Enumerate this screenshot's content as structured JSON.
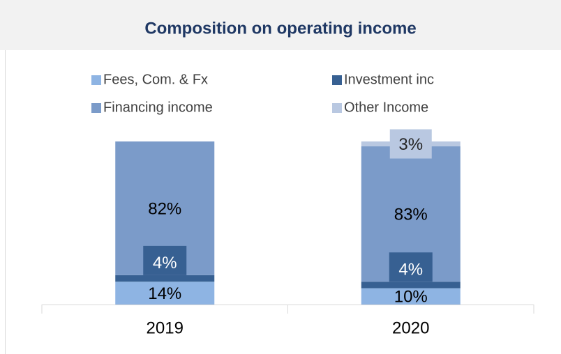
{
  "chart_data": {
    "type": "stacked_bar",
    "title": "Composition on operating income",
    "categories": [
      "2019",
      "2020"
    ],
    "series": [
      {
        "name": "Fees, Com. & Fx",
        "color": "#8eb4e3",
        "values": [
          14,
          10
        ],
        "value_labels": [
          "14%",
          "10%"
        ]
      },
      {
        "name": "Investment inc",
        "color": "#376092",
        "values": [
          4,
          4
        ],
        "value_labels": [
          "4%",
          "4%"
        ]
      },
      {
        "name": "Financing income",
        "color": "#7b9bc9",
        "values": [
          82,
          83
        ],
        "value_labels": [
          "82%",
          "83%"
        ]
      },
      {
        "name": "Other Income",
        "color": "#b9c8e1",
        "values": [
          0,
          3
        ],
        "value_labels": [
          null,
          "3%"
        ]
      }
    ],
    "ylim": [
      0,
      100
    ]
  }
}
